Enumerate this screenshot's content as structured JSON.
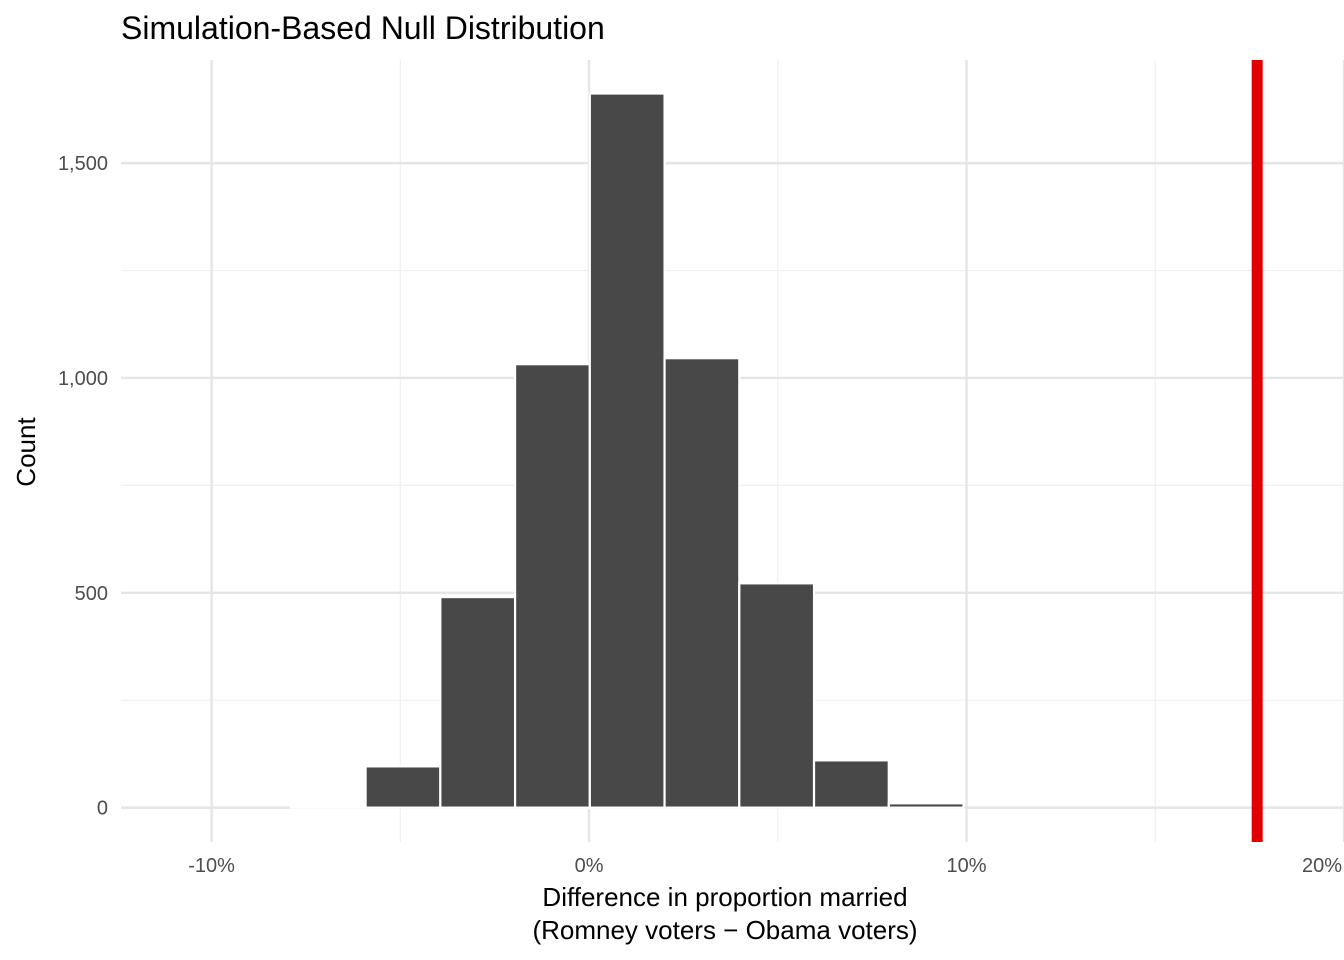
{
  "chart_data": {
    "type": "bar",
    "title": "Simulation-Based Null Distribution",
    "xlabel_line1": "Difference in proportion married",
    "xlabel_line2": "(Romney voters − Obama voters)",
    "ylabel": "Count",
    "xlim": [
      -0.124,
      0.2
    ],
    "ylim": [
      -80,
      1740
    ],
    "x_ticks": [
      {
        "value": -0.1,
        "label": "-10%"
      },
      {
        "value": 0.0,
        "label": "0%"
      },
      {
        "value": 0.1,
        "label": "10%"
      },
      {
        "value": 0.2,
        "label": "20%"
      }
    ],
    "x_minor_ticks": [
      -0.05,
      0.05,
      0.15
    ],
    "y_ticks": [
      {
        "value": 0,
        "label": "0"
      },
      {
        "value": 500,
        "label": "500"
      },
      {
        "value": 1000,
        "label": "1,000"
      },
      {
        "value": 1500,
        "label": "1,500"
      }
    ],
    "y_minor_ticks": [
      250,
      750,
      1250
    ],
    "bin_width": 0.0198,
    "bins": [
      {
        "x_start": -0.1186,
        "count": 0
      },
      {
        "x_start": -0.0988,
        "count": 0
      },
      {
        "x_start": -0.079,
        "count": 5
      },
      {
        "x_start": -0.0592,
        "count": 96
      },
      {
        "x_start": -0.0394,
        "count": 490
      },
      {
        "x_start": -0.0196,
        "count": 1032
      },
      {
        "x_start": 0.0002,
        "count": 1662
      },
      {
        "x_start": 0.02,
        "count": 1046
      },
      {
        "x_start": 0.0398,
        "count": 522
      },
      {
        "x_start": 0.0596,
        "count": 110
      },
      {
        "x_start": 0.0794,
        "count": 10
      },
      {
        "x_start": 0.0992,
        "count": 0
      },
      {
        "x_start": 0.119,
        "count": 0
      },
      {
        "x_start": 0.1388,
        "count": 0
      },
      {
        "x_start": 0.1586,
        "count": 0
      },
      {
        "x_start": 0.1784,
        "count": 0
      }
    ],
    "observed_statistic": 0.177,
    "grid": true,
    "colors": {
      "bar_fill": "#484848",
      "bar_stroke": "#ffffff",
      "observed_line": "#e00000",
      "grid_major": "#e5e5e5",
      "grid_minor": "#f0f0f0",
      "tick_label": "#4d4d4d",
      "text": "#000000"
    }
  }
}
